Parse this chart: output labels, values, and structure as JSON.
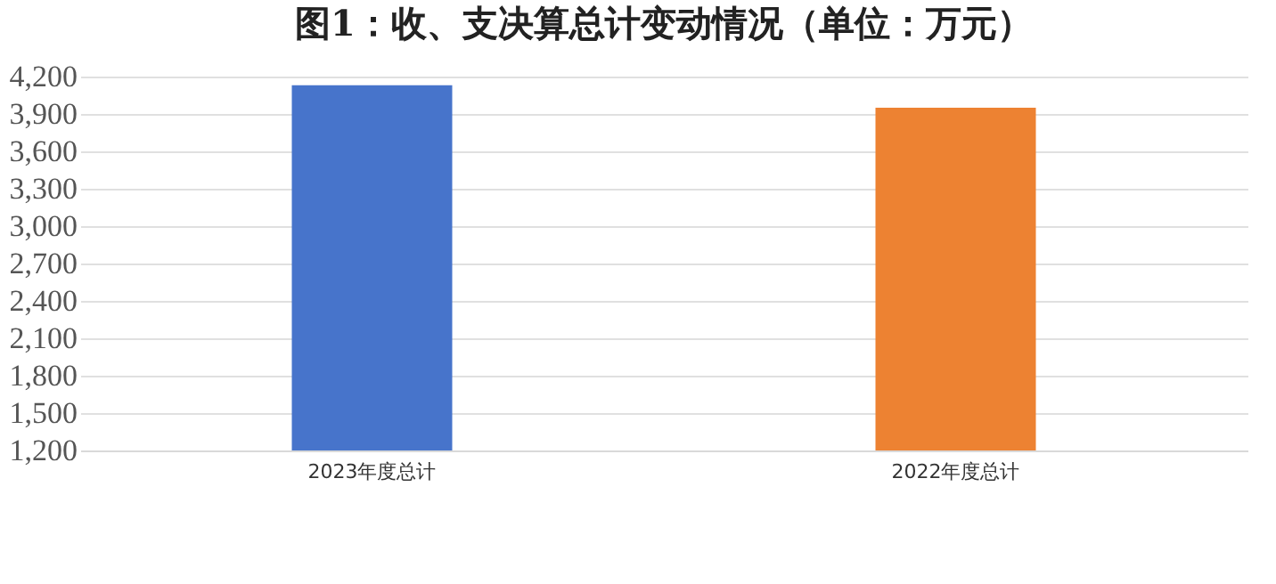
{
  "chart_data": {
    "type": "bar",
    "title": "图1：收、支决算总计变动情况（单位：万元）",
    "categories": [
      "2023年度总计",
      "2022年度总计"
    ],
    "values": [
      4130,
      3950
    ],
    "colors": [
      "#4774cb",
      "#ed8232"
    ],
    "ylim": [
      1200,
      4200
    ],
    "yticks": [
      {
        "value": 1200,
        "label": "1,200"
      },
      {
        "value": 1500,
        "label": "1,500"
      },
      {
        "value": 1800,
        "label": "1,800"
      },
      {
        "value": 2100,
        "label": "2,100"
      },
      {
        "value": 2400,
        "label": "2,400"
      },
      {
        "value": 2700,
        "label": "2,700"
      },
      {
        "value": 3000,
        "label": "3,000"
      },
      {
        "value": 3300,
        "label": "3,300"
      },
      {
        "value": 3600,
        "label": "3,600"
      },
      {
        "value": 3900,
        "label": "3,900"
      },
      {
        "value": 4200,
        "label": "4,200"
      }
    ],
    "grid": "y"
  }
}
